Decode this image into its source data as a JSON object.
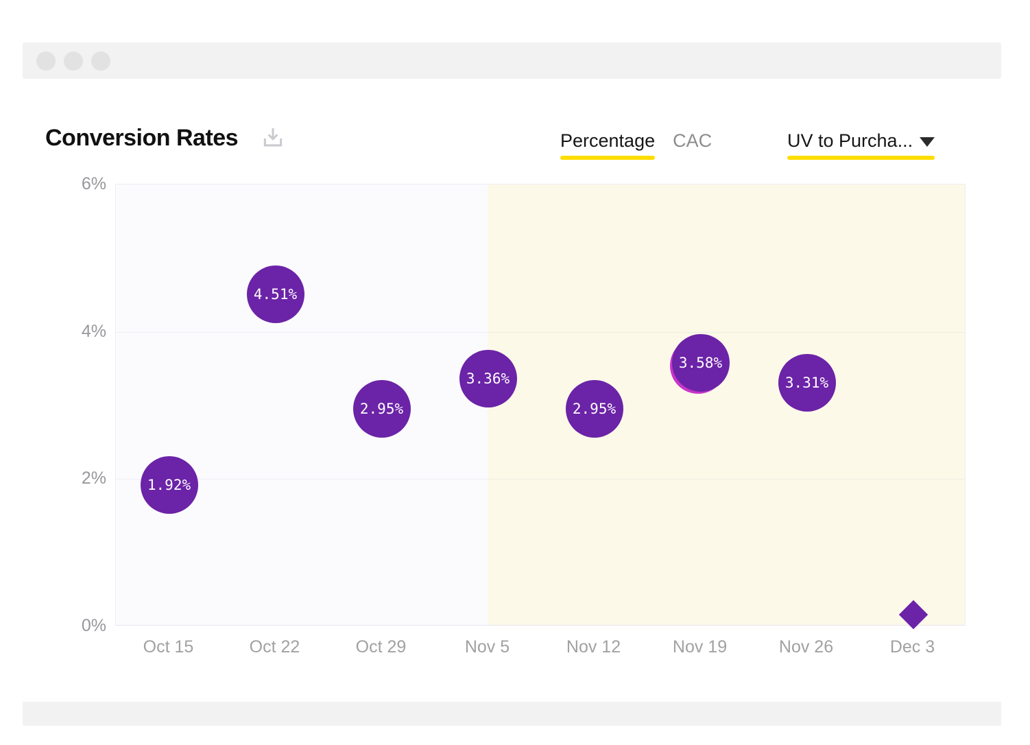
{
  "header": {
    "title": "Conversion Rates",
    "tabs": [
      {
        "label": "Percentage",
        "active": true
      },
      {
        "label": "CAC",
        "active": false
      }
    ],
    "dropdown": {
      "value": "UV to Purcha...",
      "icon": "caret-down"
    }
  },
  "colors": {
    "accent_yellow": "#ffdd00",
    "bubble_purple": "#6b23a7",
    "magenta_accent": "#c735c9",
    "plot_bg_left": "#fbfbfe",
    "plot_bg_right": "#fcf9e9",
    "axis_text": "#97979d",
    "inactive_tab": "#8c8c8c"
  },
  "chart_data": {
    "type": "scatter",
    "title": "Conversion Rates",
    "x": [
      "Oct 15",
      "Oct 22",
      "Oct 29",
      "Nov 5",
      "Nov 12",
      "Nov 19",
      "Nov 26",
      "Dec 3"
    ],
    "points": [
      {
        "x": "Oct 15",
        "value": 1.92,
        "label": "1.92%",
        "marker": "circle"
      },
      {
        "x": "Oct 22",
        "value": 4.51,
        "label": "4.51%",
        "marker": "circle"
      },
      {
        "x": "Oct 29",
        "value": 2.95,
        "label": "2.95%",
        "marker": "circle"
      },
      {
        "x": "Nov 5",
        "value": 3.36,
        "label": "3.36%",
        "marker": "circle"
      },
      {
        "x": "Nov 12",
        "value": 2.95,
        "label": "2.95%",
        "marker": "circle"
      },
      {
        "x": "Nov 19",
        "value": 3.58,
        "label": "3.58%",
        "marker": "circle",
        "accent": true
      },
      {
        "x": "Nov 26",
        "value": 3.31,
        "label": "3.31%",
        "marker": "circle"
      },
      {
        "x": "Dec 3",
        "value": 0.16,
        "label": "",
        "marker": "diamond"
      }
    ],
    "y_ticks": [
      {
        "value": 0,
        "label": "0%"
      },
      {
        "value": 2,
        "label": "2%"
      },
      {
        "value": 4,
        "label": "4%"
      },
      {
        "value": 6,
        "label": "6%"
      }
    ],
    "ylim": [
      0,
      6
    ],
    "grid": true,
    "legend": "none",
    "highlight_region": {
      "from_x": "Nov 5",
      "to_end": true
    }
  }
}
